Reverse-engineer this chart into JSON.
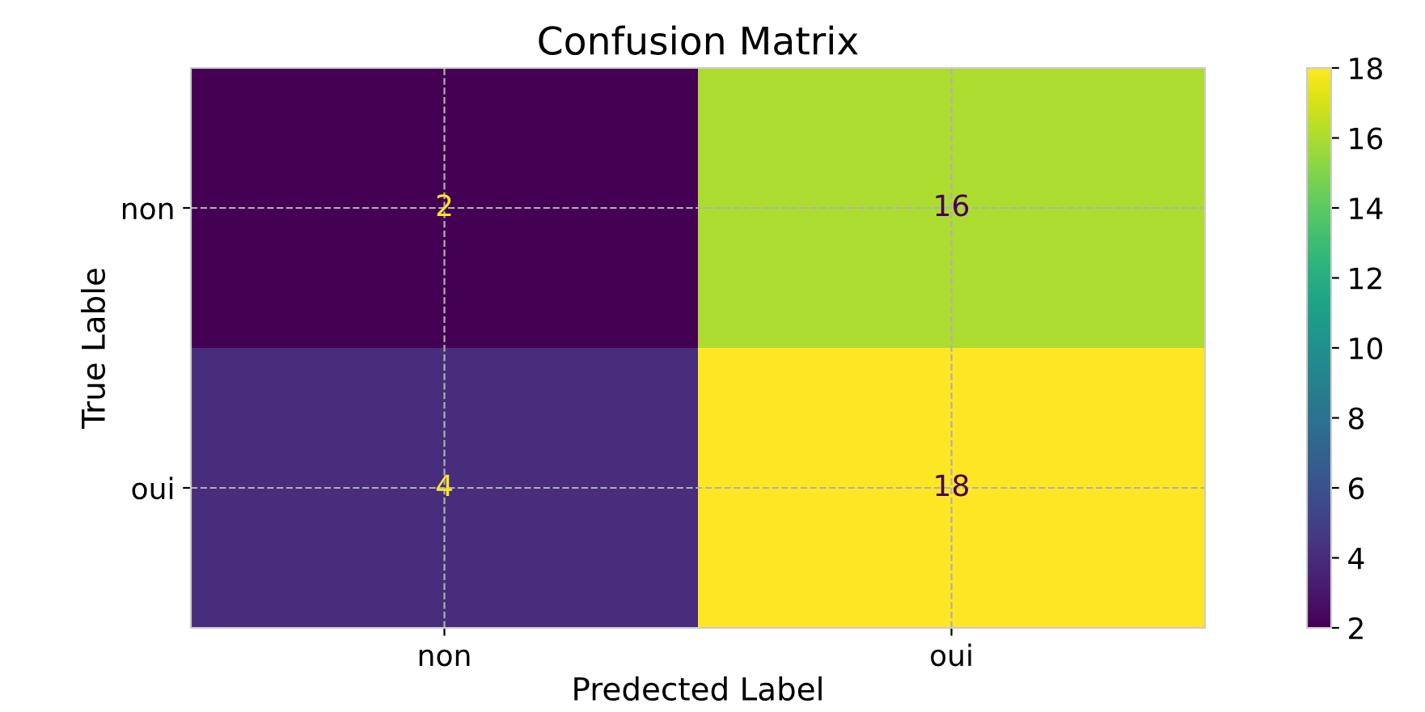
{
  "chart_data": {
    "type": "heatmap",
    "title": "Confusion Matrix",
    "xlabel": "Predected Label",
    "ylabel": "True Lable",
    "categories": [
      "non",
      "oui"
    ],
    "y_categories": [
      "non",
      "oui"
    ],
    "cells": [
      [
        2,
        16
      ],
      [
        4,
        18
      ]
    ],
    "clim": [
      2,
      18
    ],
    "cticks": [
      2,
      4,
      6,
      8,
      10,
      12,
      14,
      16,
      18
    ],
    "data_labels": true,
    "grid": true
  }
}
